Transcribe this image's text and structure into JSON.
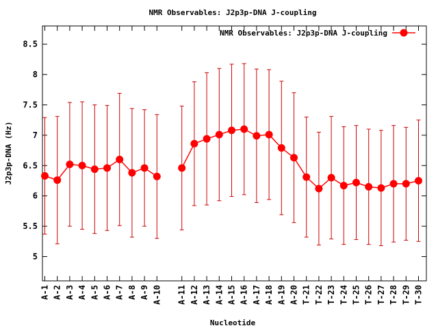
{
  "chart_data": {
    "type": "line",
    "title": "NMR Observables: J2p3p-DNA J-coupling",
    "xlabel": "Nucleotide",
    "ylabel": "J2p3p-DNA (Hz)",
    "ylim": [
      4.6,
      8.8
    ],
    "yticks": [
      5,
      5.5,
      6,
      6.5,
      7,
      7.5,
      8,
      8.5
    ],
    "ytick_labels": [
      "5",
      "5.5",
      "6",
      "6.5",
      "7",
      "7.5",
      "8",
      "8.5"
    ],
    "grid": false,
    "legend_position": "top-right",
    "series": [
      {
        "name": "NMR Observables: J2p3p-DNA J-coupling",
        "color": "#ff0000",
        "error_color": "#cc0000",
        "segments": [
          {
            "categories": [
              "A-1",
              "A-2",
              "A-3",
              "A-4",
              "A-5",
              "A-6",
              "A-7",
              "A-8",
              "A-9",
              "A-10"
            ],
            "values": [
              6.33,
              6.26,
              6.52,
              6.5,
              6.44,
              6.46,
              6.6,
              6.38,
              6.46,
              6.32
            ],
            "errors": [
              0.96,
              1.05,
              1.02,
              1.05,
              1.06,
              1.03,
              1.09,
              1.06,
              0.96,
              1.02
            ]
          },
          {
            "categories": [
              "A-11",
              "A-12",
              "A-13",
              "A-14",
              "A-15",
              "A-16",
              "A-17",
              "A-18",
              "A-19",
              "A-20",
              "T-21",
              "T-22",
              "T-23",
              "T-24",
              "T-25",
              "T-26",
              "T-27",
              "T-28",
              "T-29",
              "T-30"
            ],
            "values": [
              6.46,
              6.86,
              6.94,
              7.01,
              7.08,
              7.1,
              6.99,
              7.01,
              6.79,
              6.63,
              6.31,
              6.12,
              6.3,
              6.17,
              6.22,
              6.15,
              6.13,
              6.2,
              6.2,
              6.25
            ],
            "errors": [
              1.02,
              1.02,
              1.09,
              1.09,
              1.09,
              1.08,
              1.1,
              1.07,
              1.1,
              1.07,
              0.99,
              0.93,
              1.01,
              0.97,
              0.94,
              0.95,
              0.95,
              0.96,
              0.93,
              1.0
            ]
          }
        ]
      }
    ]
  }
}
